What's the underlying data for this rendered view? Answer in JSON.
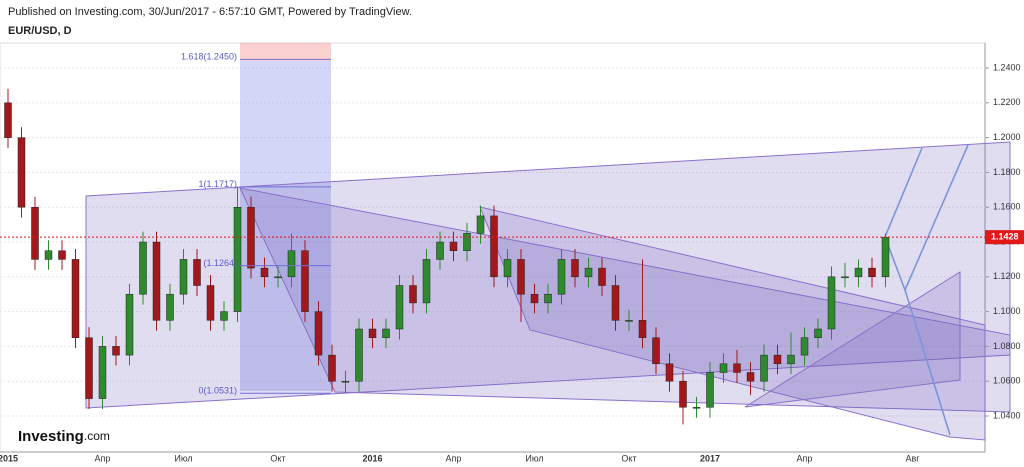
{
  "header": {
    "published": "Published on Investing.com, 30/Jun/2017 - 6:57:10 GMT, Powered by TradingView.",
    "symbol": "EUR/USD, D",
    "logo": "Investing",
    "logo_suffix": ".com"
  },
  "chart_data": {
    "type": "candlestick",
    "categories": [
      "2015",
      null,
      null,
      null,
      null,
      null,
      null,
      "Апр",
      null,
      null,
      null,
      null,
      null,
      "Июл",
      null,
      null,
      null,
      null,
      null,
      null,
      "Окт",
      null,
      null,
      null,
      null,
      null,
      null,
      "2016",
      null,
      null,
      null,
      null,
      null,
      "Апр",
      null,
      null,
      null,
      null,
      null,
      "Июл",
      null,
      null,
      null,
      null,
      null,
      null,
      "Окт",
      null,
      null,
      null,
      null,
      null,
      "2017",
      null,
      null,
      null,
      null,
      null,
      null,
      "Апр",
      null,
      null,
      null,
      null,
      null,
      null,
      null,
      "Авг"
    ],
    "open": [
      1.22,
      1.2,
      1.16,
      1.13,
      1.135,
      1.13,
      1.085,
      1.05,
      1.08,
      1.075,
      1.11,
      1.14,
      1.095,
      1.11,
      1.13,
      1.115,
      1.095,
      1.1,
      1.16,
      1.125,
      1.12,
      1.12,
      1.135,
      1.1,
      1.075,
      1.06,
      1.06,
      1.09,
      1.085,
      1.09,
      1.115,
      1.105,
      1.13,
      1.14,
      1.135,
      1.145,
      1.155,
      1.12,
      1.13,
      1.11,
      1.105,
      1.11,
      1.13,
      1.12,
      1.125,
      1.115,
      1.095,
      1.095,
      1.085,
      1.07,
      1.06,
      1.045,
      1.045,
      1.065,
      1.07,
      1.065,
      1.06,
      1.075,
      1.07,
      1.075,
      1.085,
      1.09,
      1.12,
      1.12,
      1.125,
      1.12,
      null,
      null
    ],
    "high": [
      1.228,
      1.206,
      1.166,
      1.141,
      1.141,
      1.136,
      1.091,
      1.086,
      1.086,
      1.116,
      1.146,
      1.146,
      1.116,
      1.136,
      1.136,
      1.121,
      1.106,
      1.1717,
      1.166,
      1.131,
      1.126,
      1.145,
      1.141,
      1.106,
      1.081,
      1.066,
      1.096,
      1.096,
      1.096,
      1.121,
      1.121,
      1.136,
      1.146,
      1.146,
      1.151,
      1.161,
      1.161,
      1.136,
      1.136,
      1.116,
      1.116,
      1.136,
      1.136,
      1.131,
      1.131,
      1.121,
      1.101,
      1.13,
      1.091,
      1.076,
      1.066,
      1.051,
      1.071,
      1.076,
      1.078,
      1.071,
      1.081,
      1.081,
      1.088,
      1.091,
      1.096,
      1.126,
      1.128,
      1.13,
      1.131,
      1.145,
      null,
      null
    ],
    "low": [
      1.194,
      1.154,
      1.124,
      1.124,
      1.124,
      1.079,
      1.044,
      1.044,
      1.069,
      1.069,
      1.104,
      1.089,
      1.089,
      1.104,
      1.109,
      1.089,
      1.089,
      1.094,
      1.119,
      1.114,
      1.114,
      1.114,
      1.094,
      1.069,
      1.054,
      1.0531,
      1.054,
      1.079,
      1.079,
      1.084,
      1.099,
      1.099,
      1.124,
      1.129,
      1.129,
      1.139,
      1.114,
      1.114,
      1.094,
      1.099,
      1.099,
      1.104,
      1.114,
      1.114,
      1.109,
      1.089,
      1.089,
      1.079,
      1.064,
      1.054,
      1.0352,
      1.039,
      1.039,
      1.059,
      1.059,
      1.052,
      1.054,
      1.064,
      1.064,
      1.069,
      1.079,
      1.084,
      1.114,
      1.114,
      1.114,
      1.114,
      null,
      null
    ],
    "close": [
      1.2,
      1.16,
      1.13,
      1.135,
      1.13,
      1.085,
      1.05,
      1.08,
      1.075,
      1.11,
      1.14,
      1.095,
      1.11,
      1.13,
      1.115,
      1.095,
      1.1,
      1.16,
      1.125,
      1.12,
      1.12,
      1.135,
      1.1,
      1.075,
      1.06,
      1.06,
      1.09,
      1.085,
      1.09,
      1.115,
      1.105,
      1.13,
      1.14,
      1.135,
      1.145,
      1.155,
      1.12,
      1.13,
      1.11,
      1.105,
      1.11,
      1.13,
      1.12,
      1.125,
      1.115,
      1.095,
      1.095,
      1.085,
      1.07,
      1.06,
      1.045,
      1.045,
      1.065,
      1.07,
      1.065,
      1.06,
      1.075,
      1.07,
      1.075,
      1.085,
      1.09,
      1.12,
      1.12,
      1.125,
      1.12,
      1.1428,
      null,
      null
    ],
    "up_color": "#2f8a2f",
    "down_color": "#a3181c",
    "ylim": [
      1.0193,
      1.2544
    ],
    "yticks": [
      {
        "value": 1.04,
        "label": "1.0400"
      },
      {
        "value": 1.06,
        "label": "1.0600"
      },
      {
        "value": 1.08,
        "label": "1.0800"
      },
      {
        "value": 1.1,
        "label": "1.1000"
      },
      {
        "value": 1.12,
        "label": "1.1200"
      },
      {
        "value": 1.14,
        "label": "1.1400"
      },
      {
        "value": 1.16,
        "label": "1.1600"
      },
      {
        "value": 1.18,
        "label": "1.1800"
      },
      {
        "value": 1.2,
        "label": "1.2000"
      },
      {
        "value": 1.22,
        "label": "1.2200"
      },
      {
        "value": 1.24,
        "label": "1.2400"
      }
    ],
    "grid": true,
    "last_price": {
      "value": 1.1428,
      "label": "1.1428",
      "color": "#e01818"
    },
    "annotations": [
      {
        "text": "1.618(1.2450)",
        "value": 1.245
      },
      {
        "text": "1(1.1717)",
        "value": 1.1717
      },
      {
        "text": "(1.1264)",
        "value": 1.1264
      },
      {
        "text": "0(1.0531)",
        "value": 1.0531
      }
    ]
  }
}
